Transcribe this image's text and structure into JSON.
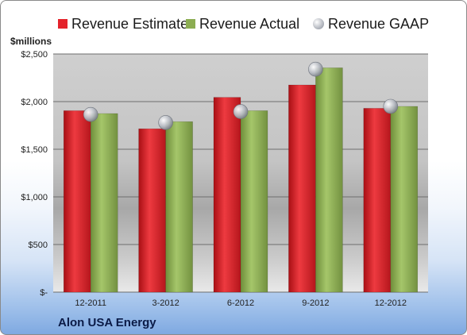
{
  "chart_data": {
    "type": "bar",
    "ylabel": "$millions",
    "categories": [
      "12-2011",
      "3-2012",
      "6-2012",
      "9-2012",
      "12-2012"
    ],
    "series": [
      {
        "name": "Revenue Estimate",
        "values": [
          1905,
          1715,
          2045,
          2175,
          1930
        ],
        "color": "#e4232b"
      },
      {
        "name": "Revenue Actual",
        "values": [
          1875,
          1790,
          1905,
          2355,
          1950
        ],
        "color": "#8cad52"
      },
      {
        "name": "Revenue GAAP",
        "values": [
          1865,
          1780,
          1895,
          2340,
          1950
        ],
        "color": "#c0c4cc",
        "marker": "sphere"
      }
    ],
    "yticks": [
      "$-",
      "$500",
      "$1,000",
      "$1,500",
      "$2,000",
      "$2,500"
    ],
    "ylim": [
      0,
      2500
    ],
    "grid": true,
    "legend": "top"
  },
  "company": "Alon USA Energy"
}
